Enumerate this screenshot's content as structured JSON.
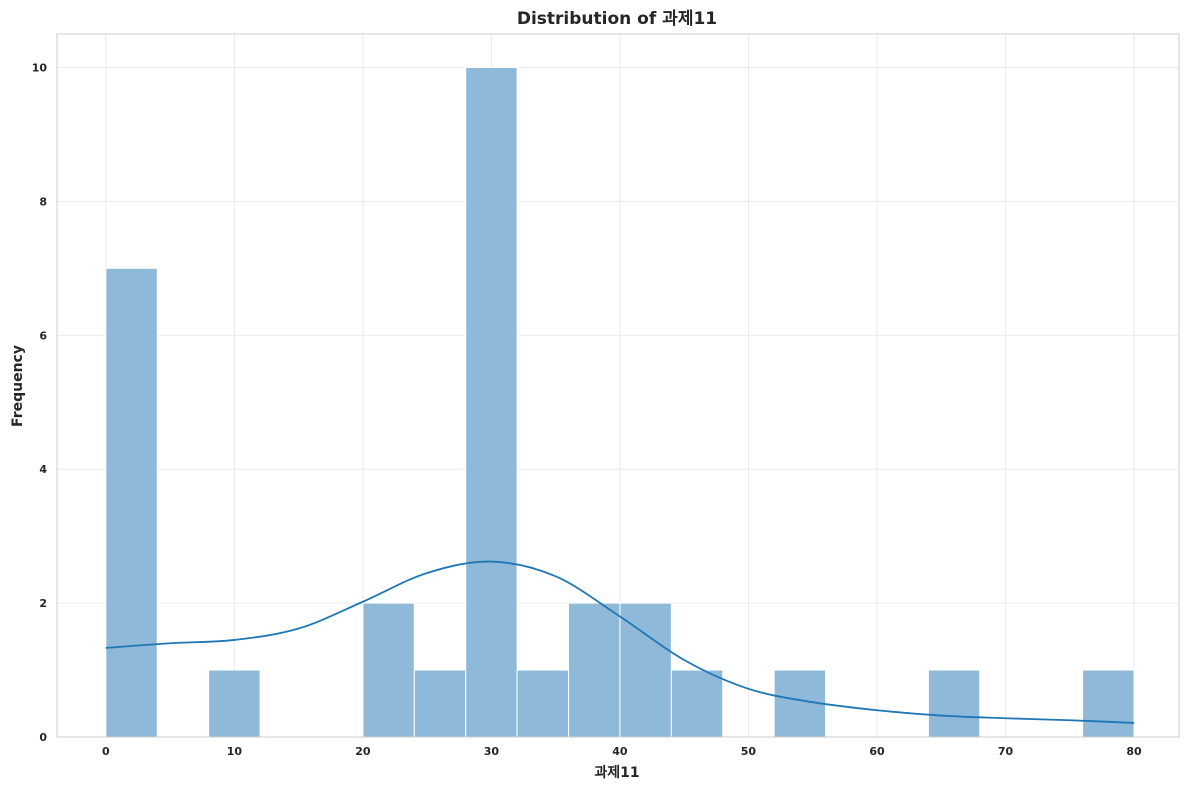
{
  "chart_data": {
    "type": "bar",
    "title": "Distribution of 과제11",
    "xlabel": "과제11",
    "ylabel": "Frequency",
    "xlim": [
      -3.8,
      83.5
    ],
    "ylim": [
      0,
      10.5
    ],
    "xticks": [
      0,
      10,
      20,
      30,
      40,
      50,
      60,
      70,
      80
    ],
    "xtick_labels": [
      "0",
      "10",
      "20",
      "30",
      "40",
      "50",
      "60",
      "70",
      "80"
    ],
    "yticks": [
      0,
      2,
      4,
      6,
      8,
      10
    ],
    "ytick_labels": [
      "0",
      "2",
      "4",
      "6",
      "8",
      "10"
    ],
    "grid": true,
    "bins": [
      {
        "start": 0,
        "end": 4,
        "count": 7
      },
      {
        "start": 4,
        "end": 8,
        "count": 0
      },
      {
        "start": 8,
        "end": 12,
        "count": 1
      },
      {
        "start": 12,
        "end": 16,
        "count": 0
      },
      {
        "start": 16,
        "end": 20,
        "count": 0
      },
      {
        "start": 20,
        "end": 24,
        "count": 2
      },
      {
        "start": 24,
        "end": 28,
        "count": 1
      },
      {
        "start": 28,
        "end": 32,
        "count": 10
      },
      {
        "start": 32,
        "end": 36,
        "count": 1
      },
      {
        "start": 36,
        "end": 40,
        "count": 2
      },
      {
        "start": 40,
        "end": 44,
        "count": 2
      },
      {
        "start": 44,
        "end": 48,
        "count": 1
      },
      {
        "start": 48,
        "end": 52,
        "count": 0
      },
      {
        "start": 52,
        "end": 56,
        "count": 1
      },
      {
        "start": 56,
        "end": 60,
        "count": 0
      },
      {
        "start": 60,
        "end": 64,
        "count": 0
      },
      {
        "start": 64,
        "end": 68,
        "count": 1
      },
      {
        "start": 68,
        "end": 72,
        "count": 0
      },
      {
        "start": 72,
        "end": 76,
        "count": 0
      },
      {
        "start": 76,
        "end": 80,
        "count": 1
      }
    ],
    "kde": {
      "x": [
        0,
        5,
        10,
        15,
        20,
        25,
        30,
        35,
        40,
        45,
        50,
        55,
        60,
        65,
        70,
        75,
        80
      ],
      "y": [
        1.33,
        1.4,
        1.45,
        1.62,
        2.02,
        2.45,
        2.62,
        2.4,
        1.8,
        1.15,
        0.72,
        0.52,
        0.4,
        0.32,
        0.28,
        0.25,
        0.21
      ]
    },
    "colors": {
      "bar": "#8fb9d8",
      "kde": "#1f77b4"
    }
  }
}
